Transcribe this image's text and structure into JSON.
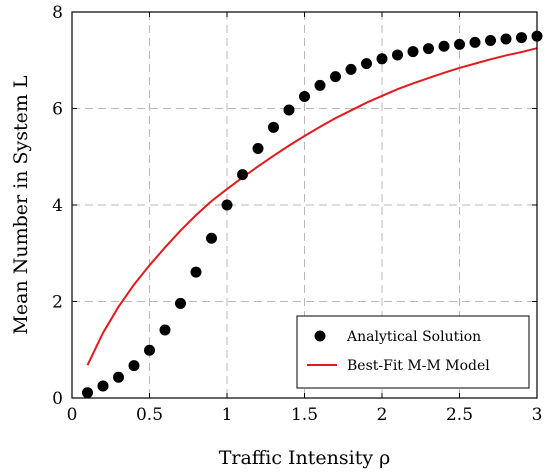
{
  "chart_data": {
    "type": "scatter",
    "xlabel": "Traffic Intensity ρ",
    "ylabel": "Mean Number in System L",
    "xlim": [
      0,
      3
    ],
    "ylim": [
      0,
      8
    ],
    "xticks": [
      0,
      0.5,
      1,
      1.5,
      2,
      2.5,
      3
    ],
    "xtick_labels": [
      "0",
      "0.5",
      "1",
      "1.5",
      "2",
      "2.5",
      "3"
    ],
    "yticks": [
      0,
      2,
      4,
      6,
      8
    ],
    "ytick_labels": [
      "0",
      "2",
      "4",
      "6",
      "8"
    ],
    "grid": true,
    "legend_position": "bottom-right",
    "series": [
      {
        "name": "Analytical Solution",
        "type": "scatter",
        "color": "#000000",
        "x": [
          0.1,
          0.2,
          0.3,
          0.4,
          0.5,
          0.6,
          0.7,
          0.8,
          0.9,
          1.0,
          1.1,
          1.2,
          1.3,
          1.4,
          1.5,
          1.6,
          1.7,
          1.8,
          1.9,
          2.0,
          2.1,
          2.2,
          2.3,
          2.4,
          2.5,
          2.6,
          2.7,
          2.8,
          2.9,
          3.0
        ],
        "y": [
          0.11,
          0.25,
          0.43,
          0.67,
          0.99,
          1.41,
          1.96,
          2.61,
          3.31,
          4.0,
          4.63,
          5.17,
          5.61,
          5.97,
          6.25,
          6.48,
          6.66,
          6.81,
          6.93,
          7.03,
          7.11,
          7.18,
          7.24,
          7.29,
          7.33,
          7.37,
          7.41,
          7.44,
          7.47,
          7.5
        ]
      },
      {
        "name": "Best-Fit M-M Model",
        "type": "line",
        "color": "#e31a1c",
        "x": [
          0.1,
          0.2,
          0.3,
          0.4,
          0.5,
          0.6,
          0.7,
          0.8,
          0.9,
          1.0,
          1.1,
          1.2,
          1.3,
          1.4,
          1.5,
          1.6,
          1.7,
          1.8,
          1.9,
          2.0,
          2.1,
          2.2,
          2.3,
          2.4,
          2.5,
          2.6,
          2.7,
          2.8,
          2.9,
          3.0
        ],
        "y": [
          0.68,
          1.35,
          1.89,
          2.35,
          2.75,
          3.12,
          3.47,
          3.79,
          4.08,
          4.33,
          4.57,
          4.8,
          5.02,
          5.23,
          5.43,
          5.62,
          5.8,
          5.96,
          6.12,
          6.26,
          6.4,
          6.52,
          6.63,
          6.74,
          6.84,
          6.93,
          7.02,
          7.1,
          7.17,
          7.25
        ]
      }
    ]
  }
}
